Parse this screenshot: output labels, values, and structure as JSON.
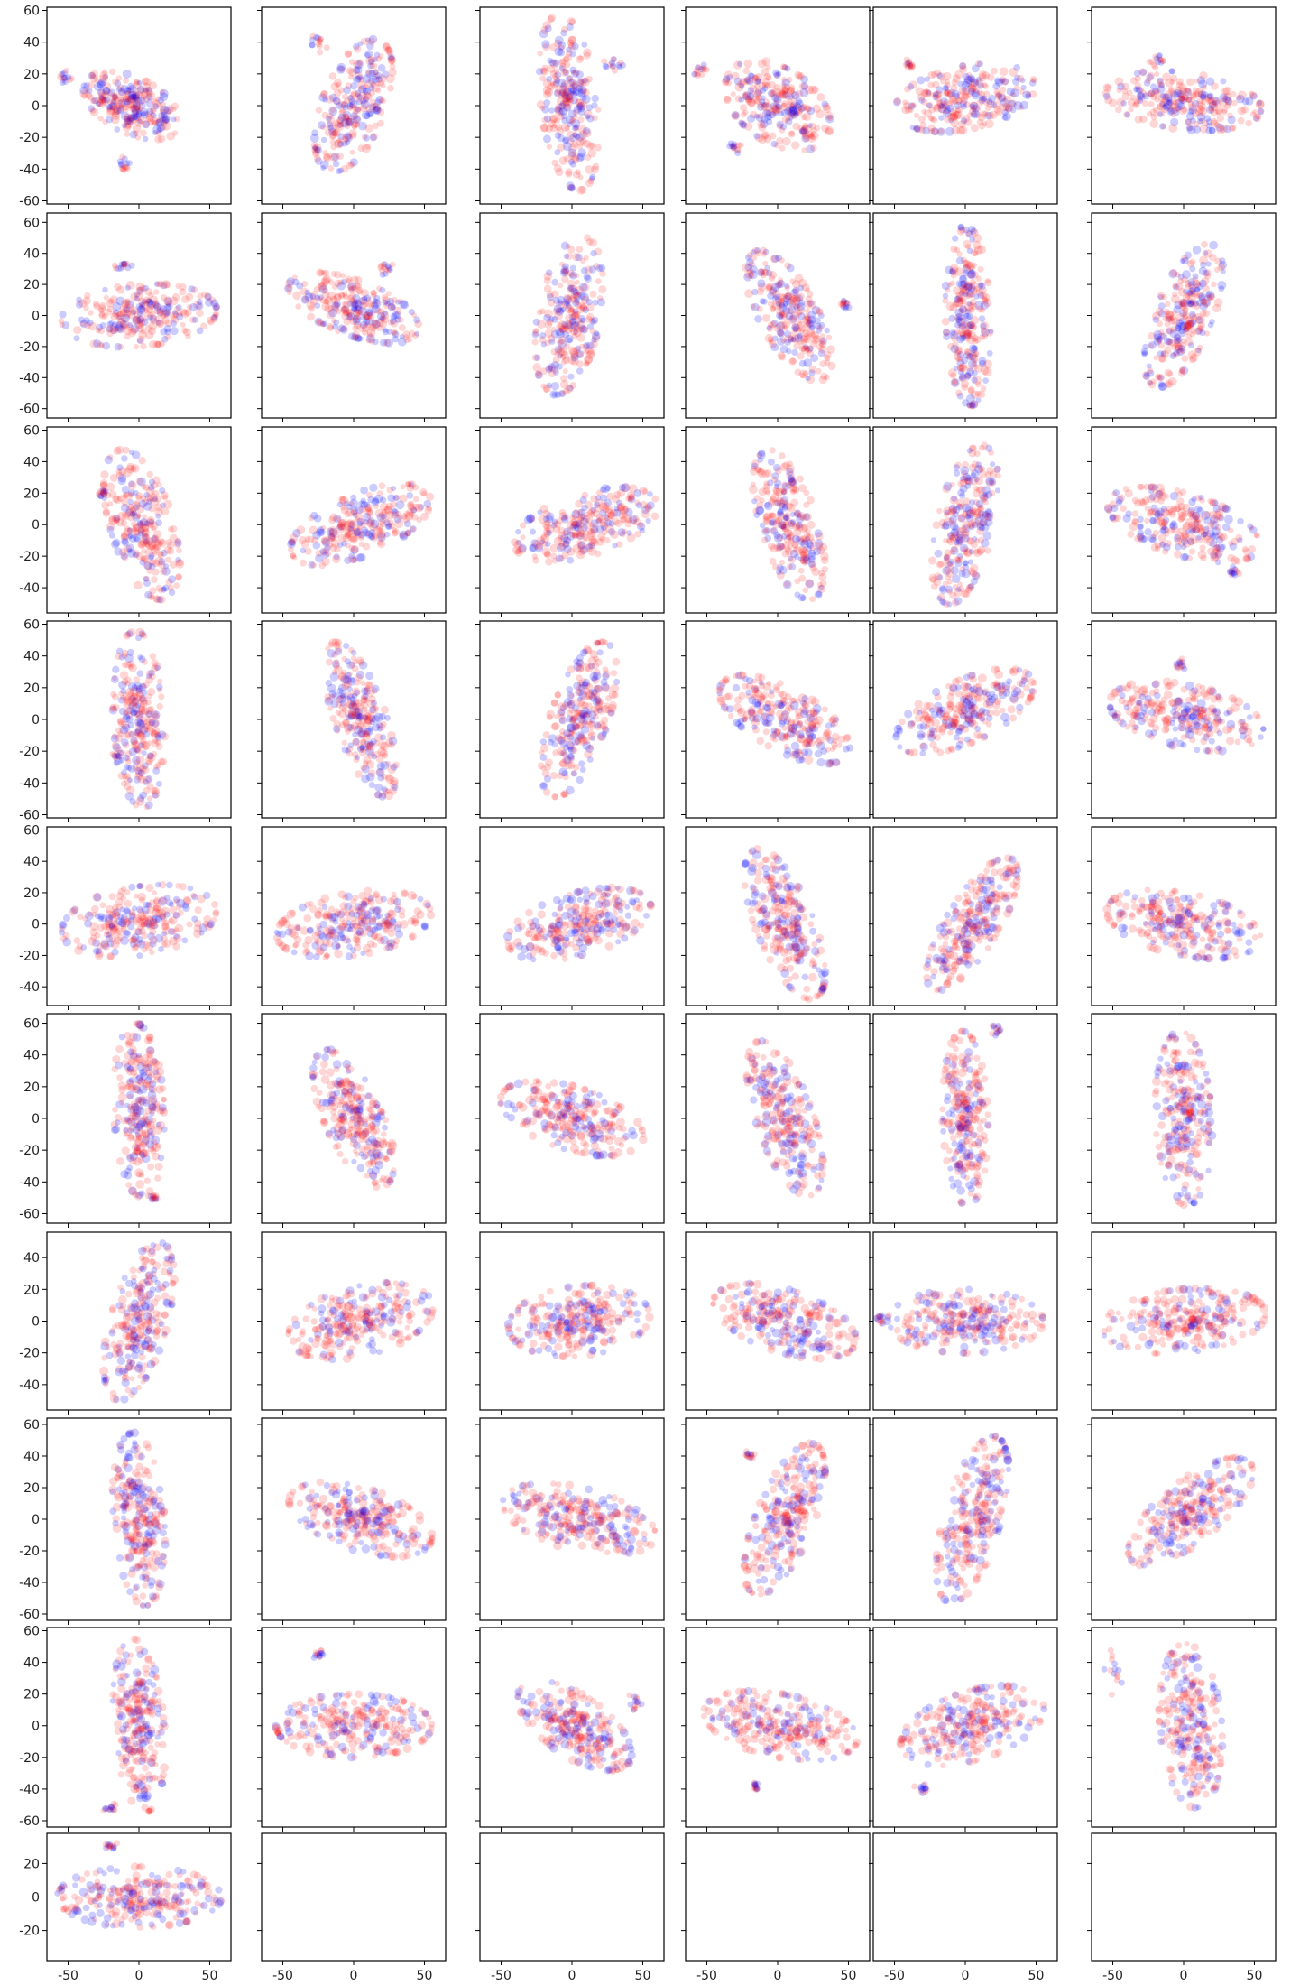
{
  "chart_data": {
    "type": "scatter",
    "grid": false,
    "layout": {
      "rows": 10,
      "cols": 6,
      "filled_panels": 55
    },
    "series": [
      {
        "color": "#0000ff"
      },
      {
        "color": "#ff0000"
      }
    ],
    "xlim": [
      -65,
      65
    ],
    "x_ticks": [
      -50,
      0,
      50
    ],
    "row_ylims": [
      [
        -62,
        62
      ],
      [
        -66,
        66
      ],
      [
        -56,
        62
      ],
      [
        -62,
        62
      ],
      [
        -52,
        62
      ],
      [
        -66,
        66
      ],
      [
        -56,
        56
      ],
      [
        -64,
        64
      ],
      [
        -64,
        62
      ],
      [
        -38,
        38
      ]
    ],
    "row_yticks": [
      [
        -60,
        -40,
        -20,
        0,
        20,
        40,
        60
      ],
      [
        -60,
        -40,
        -20,
        0,
        20,
        40,
        60
      ],
      [
        -40,
        -20,
        0,
        20,
        40,
        60
      ],
      [
        -60,
        -40,
        -20,
        0,
        20,
        40,
        60
      ],
      [
        -40,
        -20,
        0,
        20,
        40,
        60
      ],
      [
        -60,
        -40,
        -20,
        0,
        20,
        40,
        60
      ],
      [
        -40,
        -20,
        0,
        20,
        40
      ],
      [
        -60,
        -40,
        -20,
        0,
        20,
        40,
        60
      ],
      [
        -60,
        -40,
        -20,
        0,
        20,
        40,
        60
      ],
      [
        -20,
        0,
        20
      ]
    ],
    "panels": [
      {
        "cx": -5,
        "cy": 0,
        "rx": 36,
        "ry": 18,
        "angle": -22,
        "blobs": [
          [
            -10,
            -38,
            5,
            4
          ],
          [
            -52,
            18,
            5,
            3
          ]
        ]
      },
      {
        "cx": 0,
        "cy": 0,
        "rx": 22,
        "ry": 45,
        "angle": -25,
        "blobs": [
          [
            -26,
            40,
            6,
            5
          ]
        ]
      },
      {
        "cx": -2,
        "cy": 2,
        "rx": 20,
        "ry": 56,
        "angle": 8,
        "blobs": [
          [
            30,
            25,
            7,
            5
          ]
        ]
      },
      {
        "cx": 0,
        "cy": 0,
        "rx": 40,
        "ry": 24,
        "angle": -28,
        "blobs": [
          [
            -30,
            -25,
            6,
            4
          ],
          [
            -55,
            22,
            4,
            3
          ]
        ]
      },
      {
        "cx": 0,
        "cy": 5,
        "rx": 50,
        "ry": 20,
        "angle": 10,
        "blobs": [
          [
            -40,
            26,
            4,
            3
          ]
        ]
      },
      {
        "cx": 0,
        "cy": 3,
        "rx": 55,
        "ry": 18,
        "angle": -6,
        "blobs": [
          [
            -18,
            27,
            5,
            4
          ]
        ]
      },
      {
        "cx": 0,
        "cy": 0,
        "rx": 55,
        "ry": 20,
        "angle": 4,
        "blobs": [
          [
            -10,
            32,
            5,
            3
          ]
        ]
      },
      {
        "cx": 0,
        "cy": 5,
        "rx": 48,
        "ry": 18,
        "angle": -18,
        "blobs": [
          [
            22,
            30,
            6,
            4
          ]
        ]
      },
      {
        "cx": -2,
        "cy": 0,
        "rx": 22,
        "ry": 52,
        "angle": -12,
        "blobs": []
      },
      {
        "cx": 8,
        "cy": 0,
        "rx": 20,
        "ry": 48,
        "angle": 32,
        "blobs": [
          [
            48,
            7,
            4,
            3
          ]
        ]
      },
      {
        "cx": 2,
        "cy": 0,
        "rx": 16,
        "ry": 58,
        "angle": 2,
        "blobs": []
      },
      {
        "cx": 0,
        "cy": 0,
        "rx": 20,
        "ry": 50,
        "angle": -25,
        "blobs": []
      },
      {
        "cx": 2,
        "cy": 0,
        "rx": 22,
        "ry": 50,
        "angle": 20,
        "blobs": [
          [
            -25,
            20,
            4,
            3
          ]
        ]
      },
      {
        "cx": 5,
        "cy": 0,
        "rx": 52,
        "ry": 20,
        "angle": 20,
        "blobs": []
      },
      {
        "cx": 10,
        "cy": 0,
        "rx": 52,
        "ry": 20,
        "angle": 15,
        "blobs": []
      },
      {
        "cx": 8,
        "cy": 0,
        "rx": 20,
        "ry": 50,
        "angle": 20,
        "blobs": []
      },
      {
        "cx": 0,
        "cy": 0,
        "rx": 20,
        "ry": 52,
        "angle": -15,
        "blobs": []
      },
      {
        "cx": 0,
        "cy": 0,
        "rx": 55,
        "ry": 20,
        "angle": -15,
        "blobs": [
          [
            35,
            -30,
            4,
            3
          ]
        ]
      },
      {
        "cx": 0,
        "cy": 0,
        "rx": 18,
        "ry": 56,
        "angle": 3,
        "blobs": [
          [
            -15,
            -22,
            4,
            5
          ]
        ]
      },
      {
        "cx": 5,
        "cy": 0,
        "rx": 18,
        "ry": 52,
        "angle": 22,
        "blobs": []
      },
      {
        "cx": 5,
        "cy": 0,
        "rx": 20,
        "ry": 52,
        "angle": -22,
        "blobs": []
      },
      {
        "cx": 5,
        "cy": 0,
        "rx": 50,
        "ry": 20,
        "angle": -25,
        "blobs": []
      },
      {
        "cx": 0,
        "cy": 5,
        "rx": 52,
        "ry": 20,
        "angle": 22,
        "blobs": []
      },
      {
        "cx": 2,
        "cy": 2,
        "rx": 55,
        "ry": 20,
        "angle": -10,
        "blobs": [
          [
            -2,
            35,
            4,
            3
          ]
        ]
      },
      {
        "cx": 0,
        "cy": 2,
        "rx": 55,
        "ry": 22,
        "angle": 8,
        "blobs": []
      },
      {
        "cx": 0,
        "cy": 0,
        "rx": 55,
        "ry": 20,
        "angle": 8,
        "blobs": []
      },
      {
        "cx": 5,
        "cy": 0,
        "rx": 52,
        "ry": 20,
        "angle": 14,
        "blobs": []
      },
      {
        "cx": 5,
        "cy": 0,
        "rx": 20,
        "ry": 52,
        "angle": 25,
        "blobs": []
      },
      {
        "cx": 5,
        "cy": 0,
        "rx": 18,
        "ry": 50,
        "angle": -35,
        "blobs": []
      },
      {
        "cx": 0,
        "cy": 0,
        "rx": 55,
        "ry": 20,
        "angle": -10,
        "blobs": []
      },
      {
        "cx": 0,
        "cy": 5,
        "rx": 18,
        "ry": 55,
        "angle": 3,
        "blobs": [
          [
            10,
            -50,
            4,
            3
          ]
        ]
      },
      {
        "cx": 0,
        "cy": 0,
        "rx": 20,
        "ry": 48,
        "angle": 28,
        "blobs": []
      },
      {
        "cx": 0,
        "cy": 0,
        "rx": 52,
        "ry": 20,
        "angle": -15,
        "blobs": []
      },
      {
        "cx": 5,
        "cy": 0,
        "rx": 20,
        "ry": 52,
        "angle": 22,
        "blobs": []
      },
      {
        "cx": 0,
        "cy": 0,
        "rx": 16,
        "ry": 55,
        "angle": 2,
        "blobs": [
          [
            22,
            56,
            4,
            3
          ]
        ]
      },
      {
        "cx": 0,
        "cy": 0,
        "rx": 20,
        "ry": 55,
        "angle": 3,
        "blobs": []
      },
      {
        "cx": 0,
        "cy": 0,
        "rx": 20,
        "ry": 52,
        "angle": -18,
        "blobs": []
      },
      {
        "cx": 5,
        "cy": 0,
        "rx": 52,
        "ry": 22,
        "angle": 12,
        "blobs": []
      },
      {
        "cx": 5,
        "cy": 0,
        "rx": 50,
        "ry": 22,
        "angle": 5,
        "blobs": []
      },
      {
        "cx": 5,
        "cy": 0,
        "rx": 52,
        "ry": 20,
        "angle": -15,
        "blobs": []
      },
      {
        "cx": 0,
        "cy": 0,
        "rx": 55,
        "ry": 20,
        "angle": 0,
        "blobs": [
          [
            -60,
            2,
            4,
            3
          ]
        ]
      },
      {
        "cx": 0,
        "cy": 0,
        "rx": 58,
        "ry": 20,
        "angle": 5,
        "blobs": []
      },
      {
        "cx": 0,
        "cy": 0,
        "rx": 18,
        "ry": 55,
        "angle": 5,
        "blobs": []
      },
      {
        "cx": 5,
        "cy": 0,
        "rx": 52,
        "ry": 20,
        "angle": -15,
        "blobs": []
      },
      {
        "cx": 5,
        "cy": 0,
        "rx": 55,
        "ry": 20,
        "angle": -12,
        "blobs": []
      },
      {
        "cx": 5,
        "cy": 0,
        "rx": 20,
        "ry": 52,
        "angle": -25,
        "blobs": [
          [
            -20,
            40,
            4,
            3
          ]
        ]
      },
      {
        "cx": 5,
        "cy": 0,
        "rx": 20,
        "ry": 55,
        "angle": -18,
        "blobs": []
      },
      {
        "cx": 5,
        "cy": 5,
        "rx": 52,
        "ry": 20,
        "angle": 35,
        "blobs": []
      },
      {
        "cx": 0,
        "cy": 0,
        "rx": 18,
        "ry": 55,
        "angle": 5,
        "blobs": [
          [
            -20,
            -52,
            5,
            4
          ]
        ]
      },
      {
        "cx": 0,
        "cy": 0,
        "rx": 55,
        "ry": 20,
        "angle": 0,
        "blobs": [
          [
            -25,
            45,
            4,
            3
          ]
        ]
      },
      {
        "cx": 2,
        "cy": 0,
        "rx": 45,
        "ry": 20,
        "angle": -30,
        "blobs": [
          [
            45,
            15,
            5,
            4
          ]
        ]
      },
      {
        "cx": 2,
        "cy": 0,
        "rx": 55,
        "ry": 20,
        "angle": -10,
        "blobs": [
          [
            -15,
            -38,
            3,
            3
          ]
        ]
      },
      {
        "cx": 5,
        "cy": 0,
        "rx": 52,
        "ry": 22,
        "angle": 15,
        "blobs": [
          [
            -30,
            -40,
            4,
            3
          ]
        ]
      },
      {
        "cx": 5,
        "cy": 0,
        "rx": 22,
        "ry": 52,
        "angle": 5,
        "blobs": [
          [
            -50,
            35,
            8,
            10
          ]
        ]
      },
      {
        "cx": 0,
        "cy": 0,
        "rx": 58,
        "ry": 18,
        "angle": 0,
        "blobs": [
          [
            -20,
            30,
            4,
            3
          ]
        ]
      }
    ]
  }
}
